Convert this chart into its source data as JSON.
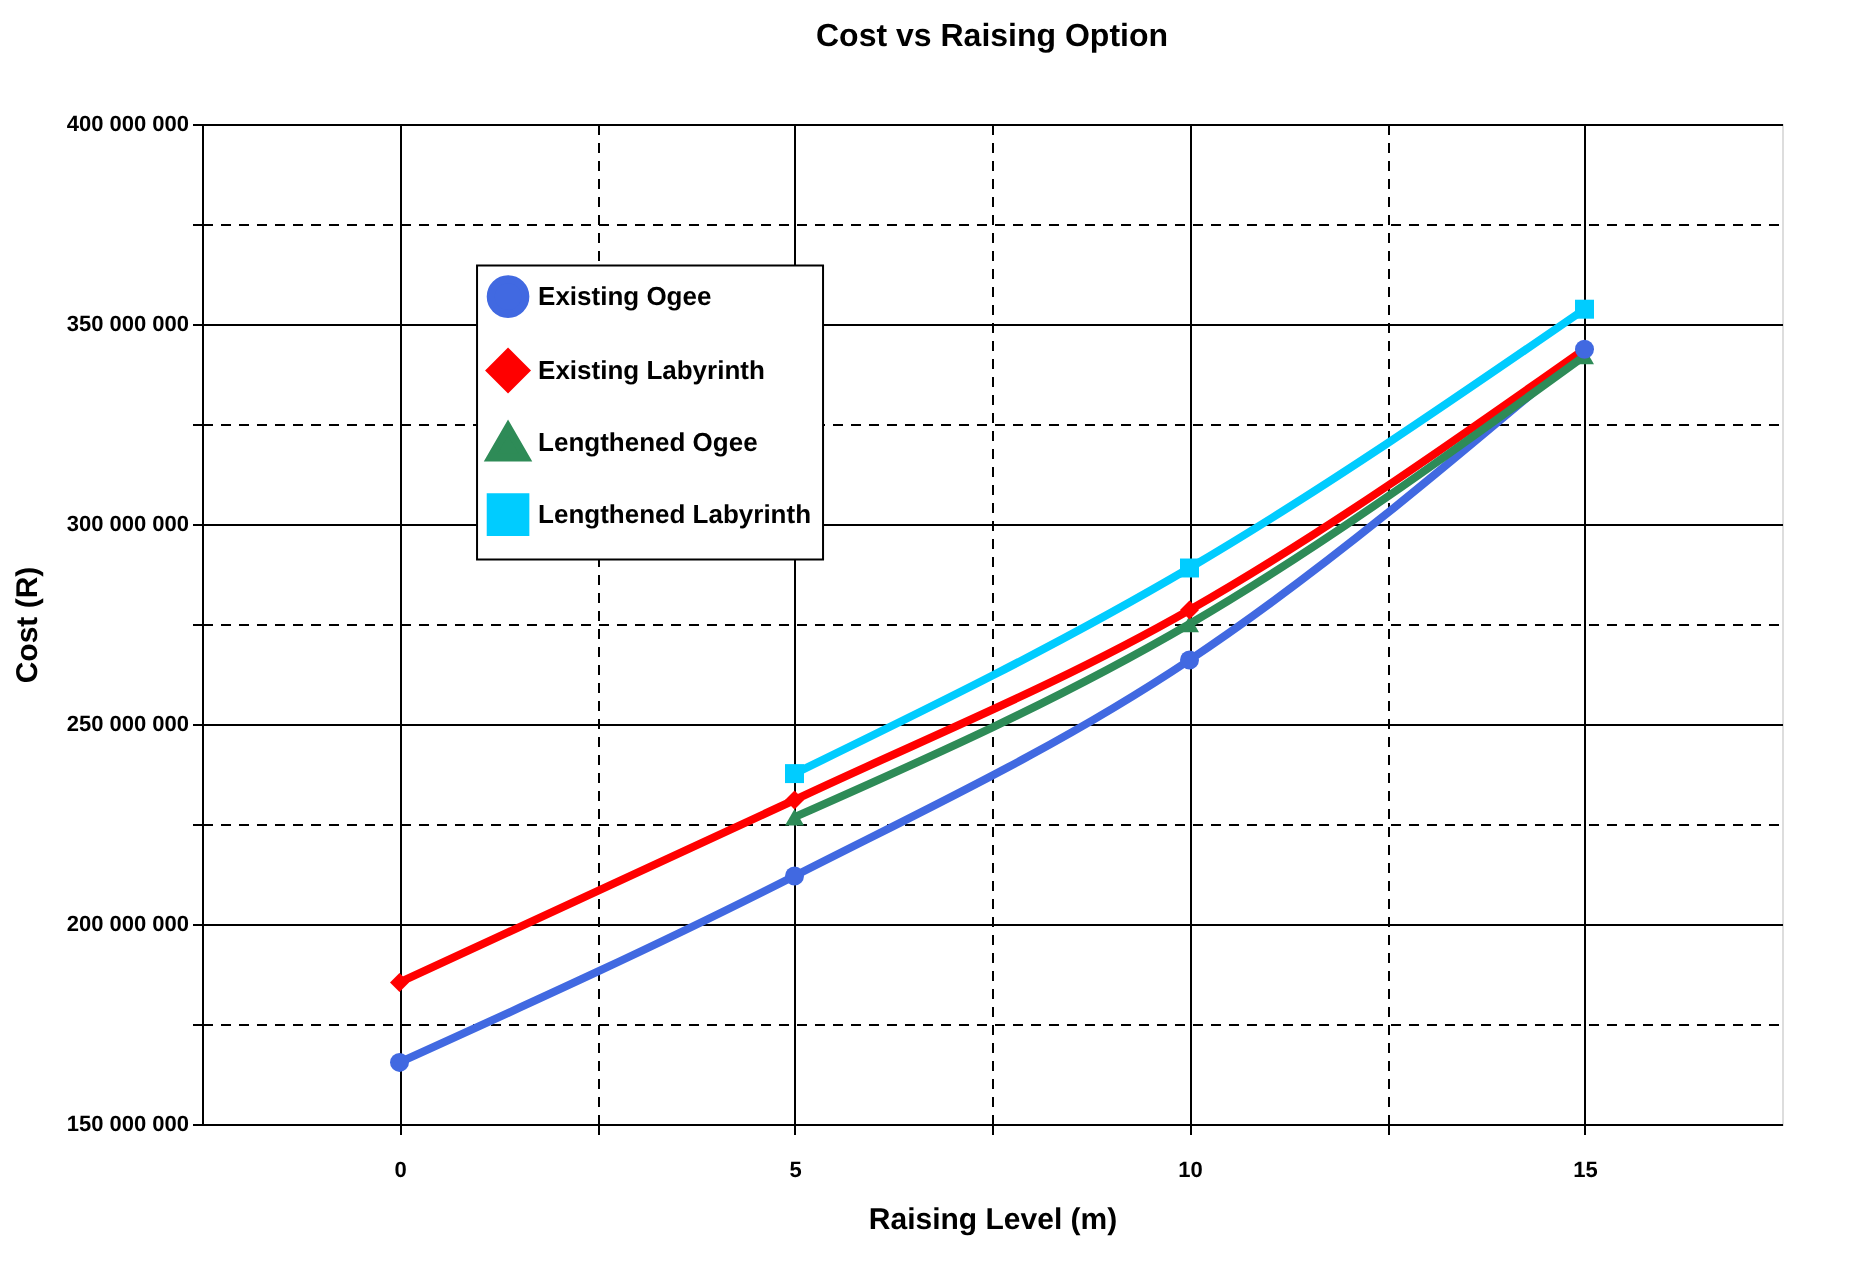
{
  "chart_data": {
    "type": "line",
    "title": "Cost vs Raising Option",
    "xlabel": "Raising Level (m)",
    "ylabel": "Cost (R)",
    "x": [
      0,
      5,
      10,
      15
    ],
    "series": [
      {
        "name": "Existing Ogee",
        "color": "#4169e1",
        "marker": "circle",
        "values": [
          165400000,
          212000000,
          266000000,
          343700000
        ]
      },
      {
        "name": "Existing Labyrinth",
        "color": "#ff0000",
        "marker": "diamond",
        "values": [
          185400000,
          231000000,
          278500000,
          343700000
        ]
      },
      {
        "name": "Lengthened Ogee",
        "color": "#2e8b57",
        "marker": "triangle",
        "x": [
          5,
          10,
          15
        ],
        "values": [
          226700000,
          275000000,
          342000000
        ]
      },
      {
        "name": "Lengthened Labyrinth",
        "color": "#00ccff",
        "marker": "square",
        "x": [
          5,
          10,
          15
        ],
        "values": [
          237600000,
          289000000,
          353700000
        ]
      }
    ],
    "xlim": [
      -2.5,
      17.5
    ],
    "xticks": [
      0,
      {
        "value": 2.5,
        "label": null
      },
      5,
      {
        "value": 7.5,
        "label": null
      },
      10,
      {
        "value": 12.5,
        "label": null
      },
      15
    ],
    "ylim": [
      150000000,
      400000000
    ],
    "yticks": [
      {
        "value": 150000000,
        "label": "150 000 000"
      },
      {
        "value": 175000000,
        "label": null
      },
      {
        "value": 200000000,
        "label": "200 000 000"
      },
      {
        "value": 225000000,
        "label": null
      },
      {
        "value": 250000000,
        "label": "250 000 000"
      },
      {
        "value": 275000000,
        "label": null
      },
      {
        "value": 300000000,
        "label": "300 000 000"
      },
      {
        "value": 325000000,
        "label": null
      },
      {
        "value": 350000000,
        "label": "350 000 000"
      },
      {
        "value": 375000000,
        "label": null
      },
      {
        "value": 400000000,
        "label": "400 000 000"
      }
    ],
    "grid": true,
    "legend": "top left",
    "line_style": "solid"
  }
}
